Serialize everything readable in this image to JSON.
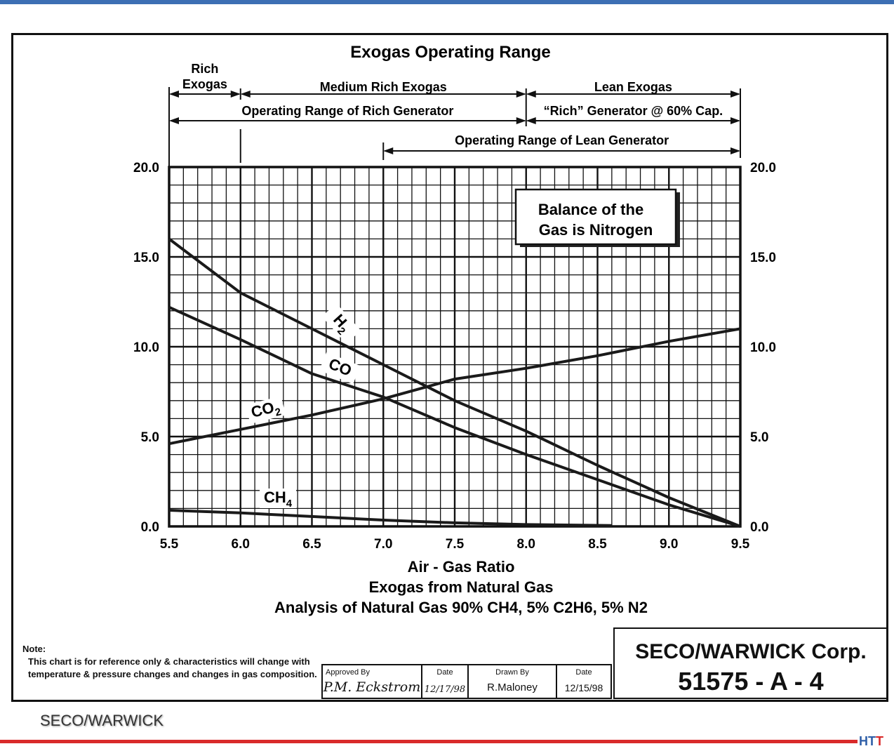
{
  "chart_data": {
    "type": "line",
    "title": "Exogas Operating Range",
    "xlabel": "Air - Gas Ratio",
    "subtitle": "Exogas from Natural Gas",
    "caption": "Analysis of Natural Gas 90% CH4, 5% C2H6, 5% N2",
    "xlim": [
      5.5,
      9.5
    ],
    "ylim": [
      0,
      20
    ],
    "xticks": [
      "5.5",
      "6.0",
      "6.5",
      "7.0",
      "7.5",
      "8.0",
      "8.5",
      "9.0",
      "9.5"
    ],
    "yticks": [
      "0.0",
      "5.0",
      "10.0",
      "15.0",
      "20.0"
    ],
    "grid": true,
    "series": [
      {
        "name": "H2",
        "x": [
          5.5,
          6.0,
          6.5,
          7.0,
          7.5,
          8.0,
          8.5,
          9.0,
          9.5
        ],
        "y": [
          16.0,
          13.0,
          11.0,
          9.0,
          7.0,
          5.3,
          3.4,
          1.6,
          0.0
        ]
      },
      {
        "name": "CO",
        "x": [
          5.5,
          6.0,
          6.5,
          7.0,
          7.5,
          8.0,
          8.5,
          9.0,
          9.5
        ],
        "y": [
          12.2,
          10.4,
          8.5,
          7.2,
          5.5,
          4.0,
          2.6,
          1.2,
          0.0
        ]
      },
      {
        "name": "CO2",
        "x": [
          5.5,
          6.0,
          6.5,
          7.0,
          7.5,
          8.0,
          8.5,
          9.0,
          9.5
        ],
        "y": [
          4.6,
          5.4,
          6.2,
          7.1,
          8.2,
          8.8,
          9.5,
          10.3,
          11.0
        ]
      },
      {
        "name": "CH4",
        "x": [
          5.5,
          6.0,
          6.5,
          7.0,
          7.5,
          8.0,
          8.6
        ],
        "y": [
          0.9,
          0.75,
          0.55,
          0.35,
          0.2,
          0.1,
          0.05
        ]
      }
    ],
    "series_labels": {
      "H2": {
        "text": "H",
        "sub": "2"
      },
      "CO": {
        "text": "CO",
        "sub": ""
      },
      "CO2": {
        "text": "CO",
        "sub": "2"
      },
      "CH4": {
        "text": "CH",
        "sub": "4"
      }
    },
    "annotation": {
      "line1": "Balance of the",
      "line2": "Gas is Nitrogen"
    },
    "ranges": [
      {
        "label": "Rich",
        "label2": "Exogas",
        "from": 5.5,
        "to": 6.0,
        "row": 1
      },
      {
        "label": "Medium Rich Exogas",
        "from": 6.0,
        "to": 8.0,
        "row": 1
      },
      {
        "label": "Lean Exogas",
        "from": 8.0,
        "to": 9.5,
        "row": 1
      },
      {
        "label": "Operating Range of Rich Generator",
        "from": 5.5,
        "to": 8.0,
        "row": 2
      },
      {
        "label": "“Rich” Generator @ 60% Cap.",
        "from": 8.0,
        "to": 9.5,
        "row": 2
      },
      {
        "label": "Operating Range of Lean Generator",
        "from": 7.0,
        "to": 9.5,
        "row": 3
      }
    ]
  },
  "note": {
    "title": "Note:",
    "text": "This chart is for reference only & characteristics will change with temperature & pressure changes and changes in gas composition."
  },
  "title_block": {
    "approved_label": "Approved By",
    "approved_value": "P.M. Eckstrom",
    "date1_label": "Date",
    "date1_value": "12/17/98",
    "drawn_label": "Drawn By",
    "drawn_value": "R.Maloney",
    "date2_label": "Date",
    "date2_value": "12/15/98"
  },
  "corp": {
    "name": "SECO/WARWICK Corp.",
    "number": "51575 - A - 4"
  },
  "footer": {
    "brand": "SECO/WARWICK",
    "logo_main": "HT",
    "logo_last": "T"
  },
  "colors": {
    "top_bar": "#3d6fb4",
    "bottom_line": "#d92a2a",
    "logo": "#2f5fa8"
  }
}
